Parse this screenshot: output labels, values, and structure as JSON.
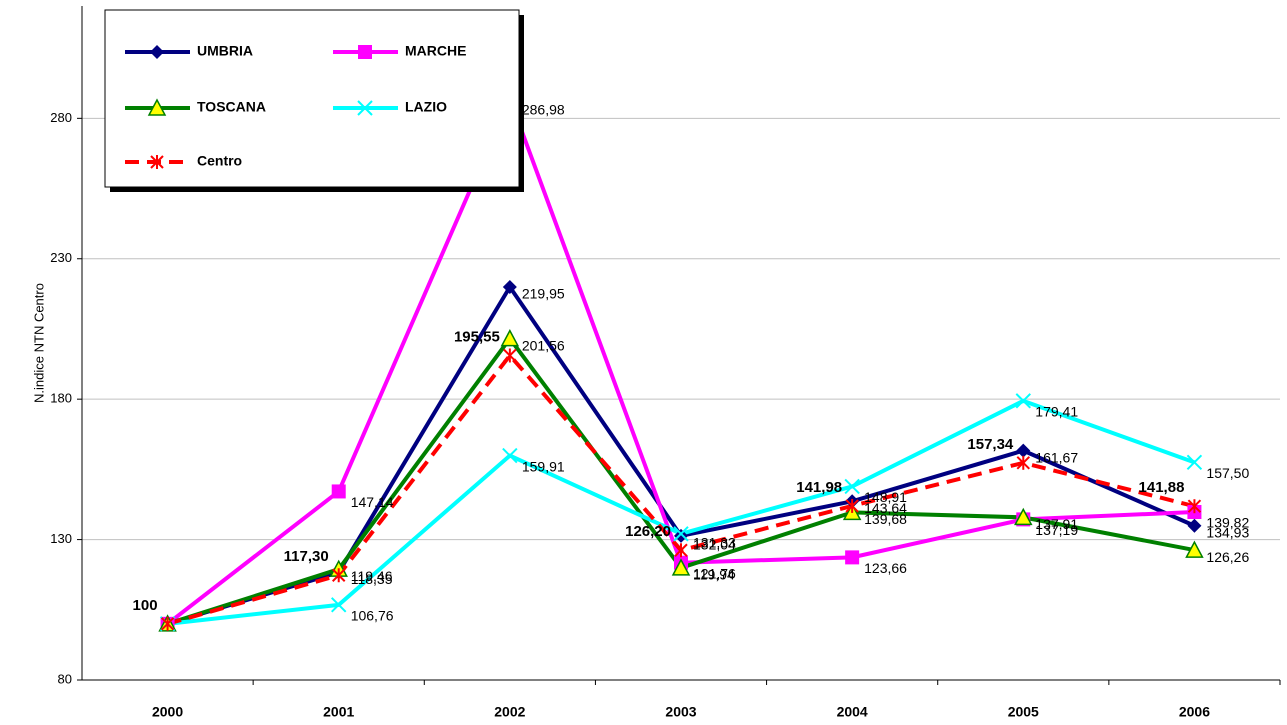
{
  "chart_data": {
    "type": "line",
    "y_label": "N.indice NTN Centro",
    "categories": [
      "2000",
      "2001",
      "2002",
      "2003",
      "2004",
      "2005",
      "2006"
    ],
    "ylim": [
      80,
      320
    ],
    "yticks": [
      80,
      130,
      180,
      230,
      280
    ],
    "grid": true,
    "legend": "top-left",
    "series": [
      {
        "name": "UMBRIA",
        "color": "#000080",
        "marker": "diamond",
        "dash": false,
        "values": [
          100,
          118.35,
          219.95,
          131.33,
          143.64,
          161.67,
          134.93
        ],
        "value_labels": [
          null,
          "118,35",
          "219,95",
          "131,33",
          "143,64",
          "161,67",
          "134,93"
        ]
      },
      {
        "name": "MARCHE",
        "color": "#ff00ff",
        "marker": "square",
        "dash": false,
        "values": [
          100,
          147.14,
          286.98,
          121.76,
          123.66,
          137.19,
          139.82
        ],
        "value_labels": [
          null,
          "147,14",
          "286,98",
          "121,76",
          "123,66",
          "137,19",
          "139,82"
        ]
      },
      {
        "name": "TOSCANA",
        "color": "#008000",
        "marker": "triangle",
        "dash": false,
        "values": [
          100,
          119.46,
          201.56,
          119.94,
          139.68,
          137.91,
          126.26
        ],
        "value_labels": [
          null,
          "119,46",
          "201,56",
          "119,94",
          "139,68",
          "137,91",
          "126,26"
        ]
      },
      {
        "name": "LAZIO",
        "color": "#00ffff",
        "marker": "x",
        "dash": false,
        "values": [
          100,
          106.76,
          159.91,
          132.04,
          148.91,
          179.41,
          157.5
        ],
        "value_labels": [
          null,
          "106,76",
          "159,91",
          "132,04",
          "148,91",
          "179,41",
          "157,50"
        ]
      },
      {
        "name": "Centro",
        "color": "#ff0000",
        "marker": "star",
        "dash": true,
        "bold_labels": true,
        "values": [
          100,
          117.3,
          195.55,
          126.2,
          141.98,
          157.34,
          141.88
        ],
        "value_labels": [
          "100",
          "117,30",
          "195,55",
          "126,20",
          "141,98",
          "157,34",
          "141,88"
        ]
      }
    ]
  }
}
